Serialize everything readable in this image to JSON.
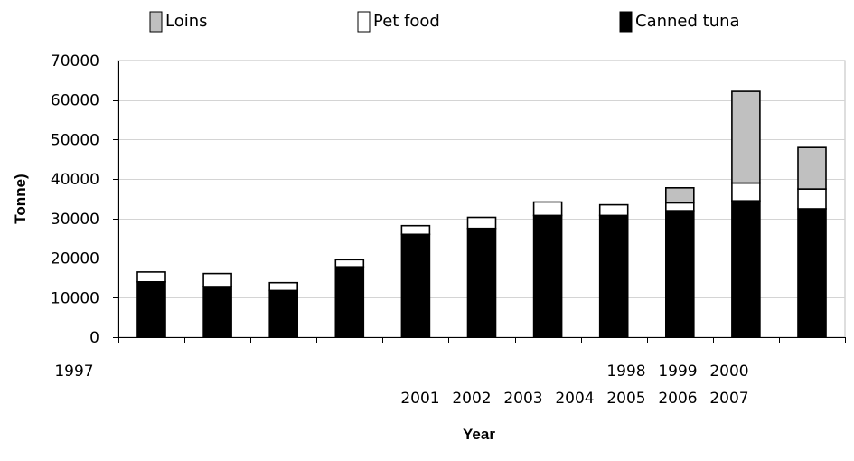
{
  "chart_data": {
    "type": "bar",
    "stacked": true,
    "xlabel": "Year",
    "ylabel": "Tonne)",
    "ylim": [
      0,
      70000
    ],
    "yticks": [
      0,
      10000,
      20000,
      30000,
      40000,
      50000,
      60000,
      70000
    ],
    "ytick_labels": [
      "0",
      "10000",
      "20000",
      "30000",
      "40000",
      "50000",
      "60000",
      "70000"
    ],
    "year_label_rows": [
      [
        "1997"
      ],
      [
        "1998",
        "1999",
        "2000"
      ],
      [
        "2001",
        "2002",
        "2003",
        "2004",
        "2005",
        "2006",
        "2007"
      ]
    ],
    "legend_position": "top",
    "series": [
      {
        "name": "Canned tuna",
        "color": "#000000",
        "values": [
          14000,
          12800,
          11800,
          17800,
          26000,
          27500,
          30800,
          30800,
          32000,
          34500,
          32500
        ]
      },
      {
        "name": "Pet food",
        "color": "#ffffff",
        "values": [
          2500,
          3300,
          2000,
          1800,
          2200,
          2800,
          3400,
          2700,
          2000,
          4500,
          5000
        ]
      },
      {
        "name": "Loins",
        "color": "#c0c0c0",
        "values": [
          0,
          0,
          0,
          0,
          0,
          0,
          0,
          0,
          3800,
          23200,
          10500
        ]
      }
    ],
    "legend": [
      "Loins",
      "Pet food",
      "Canned tuna"
    ],
    "grid": true
  }
}
